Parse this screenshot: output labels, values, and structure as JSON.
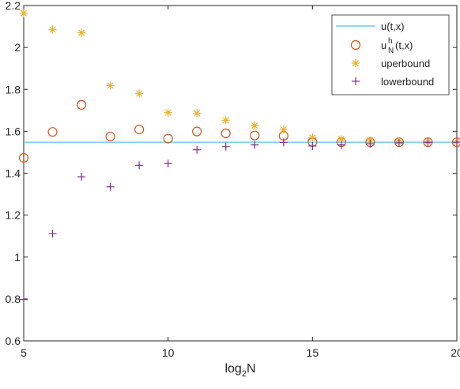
{
  "chart_data": {
    "type": "scatter",
    "title": "",
    "xlabel": "log2N",
    "xlabel_parts": {
      "base": "log",
      "sub": "2",
      "rest": "N"
    },
    "ylabel": "",
    "xlim": [
      5,
      20
    ],
    "ylim": [
      0.6,
      2.2
    ],
    "xticks": [
      5,
      10,
      15,
      20
    ],
    "xtick_labels": [
      "5",
      "10",
      "15",
      "20"
    ],
    "yticks": [
      0.6,
      0.8,
      1.0,
      1.2,
      1.4,
      1.6,
      1.8,
      2.0,
      2.2
    ],
    "ytick_labels": [
      "0.6",
      "0.8",
      "1",
      "1.2",
      "1.4",
      "1.6",
      "1.8",
      "2",
      "2.2"
    ],
    "grid": false,
    "legend_position": "top-right",
    "series": [
      {
        "name": "u(t,x)",
        "legend_label": {
          "base": "u(t,x)"
        },
        "kind": "hline",
        "color": "#4DBEEE",
        "x": [
          5,
          20
        ],
        "y": [
          1.548,
          1.548
        ]
      },
      {
        "name": "u_N^h(t,x)",
        "legend_label": {
          "base": "u",
          "sup": "h",
          "sub": "N",
          "rest": "(t,x)"
        },
        "kind": "marker",
        "marker": "circle",
        "color": "#D95319",
        "x": [
          5,
          6,
          7,
          8,
          9,
          10,
          11,
          12,
          13,
          14,
          15,
          16,
          17,
          18,
          19,
          20
        ],
        "y": [
          1.473,
          1.597,
          1.726,
          1.575,
          1.609,
          1.565,
          1.599,
          1.59,
          1.58,
          1.578,
          1.549,
          1.548,
          1.548,
          1.548,
          1.548,
          1.548
        ]
      },
      {
        "name": "uperbound",
        "legend_label": {
          "base": "uperbound"
        },
        "kind": "marker",
        "marker": "asterisk",
        "color": "#EDB120",
        "x": [
          5,
          6,
          7,
          8,
          9,
          10,
          11,
          12,
          13,
          14,
          15,
          16,
          17,
          18,
          19,
          20
        ],
        "y": [
          2.163,
          2.085,
          2.07,
          1.818,
          1.78,
          1.689,
          1.686,
          1.653,
          1.627,
          1.609,
          1.57,
          1.563,
          1.556,
          1.552,
          1.55,
          1.549
        ]
      },
      {
        "name": "lowerbound",
        "legend_label": {
          "base": "lowerbound"
        },
        "kind": "marker",
        "marker": "plus",
        "color": "#7E2F8E",
        "x": [
          5,
          6,
          7,
          8,
          9,
          10,
          11,
          12,
          13,
          14,
          15,
          16,
          17,
          18,
          19,
          20
        ],
        "y": [
          0.797,
          1.112,
          1.383,
          1.335,
          1.438,
          1.446,
          1.512,
          1.527,
          1.535,
          1.547,
          1.53,
          1.535,
          1.54,
          1.545,
          1.547,
          1.548
        ]
      }
    ]
  }
}
